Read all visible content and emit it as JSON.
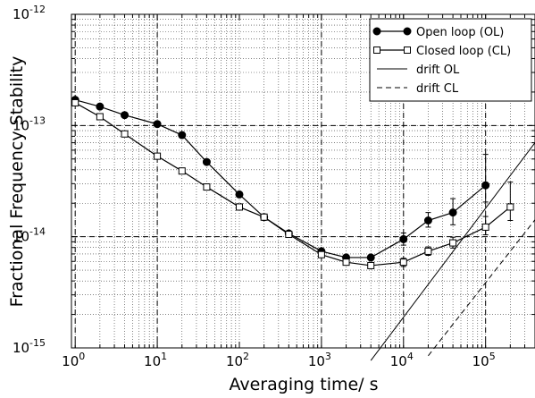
{
  "chart_data": {
    "type": "line",
    "xscale": "log",
    "yscale": "log",
    "xlim": [
      0.9,
      400000
    ],
    "ylim": [
      1e-15,
      1e-12
    ],
    "xlabel": "Averaging time/ s",
    "ylabel": "Fractional Frequency Stability",
    "grid": true,
    "legend_position": "top-right",
    "x_ticks": [
      {
        "value": 1,
        "base": "10",
        "exp": "0"
      },
      {
        "value": 10,
        "base": "10",
        "exp": "1"
      },
      {
        "value": 100,
        "base": "10",
        "exp": "2"
      },
      {
        "value": 1000,
        "base": "10",
        "exp": "3"
      },
      {
        "value": 10000,
        "base": "10",
        "exp": "4"
      },
      {
        "value": 100000,
        "base": "10",
        "exp": "5"
      }
    ],
    "y_ticks": [
      {
        "value": 1e-15,
        "base": "10",
        "exp": "-15"
      },
      {
        "value": 1e-14,
        "base": "10",
        "exp": "-14"
      },
      {
        "value": 1e-13,
        "base": "10",
        "exp": "-13"
      },
      {
        "value": 1e-12,
        "base": "10",
        "exp": "-12"
      }
    ],
    "reference_lines": [
      {
        "orient": "h",
        "value": 1e-13
      },
      {
        "orient": "h",
        "value": 1e-14
      },
      {
        "orient": "v",
        "value": 1
      },
      {
        "orient": "v",
        "value": 10
      },
      {
        "orient": "v",
        "value": 1000
      },
      {
        "orient": "v",
        "value": 10000
      },
      {
        "orient": "v",
        "value": 100000
      }
    ],
    "series": [
      {
        "name": "Open loop (OL)",
        "marker": "filled-circle",
        "color": "#000000",
        "x": [
          1,
          2,
          4,
          10,
          20,
          40,
          100,
          200,
          400,
          1000,
          2000,
          4000,
          10000,
          20000,
          40000,
          100000
        ],
        "y": [
          1.7e-13,
          1.48e-13,
          1.24e-13,
          1.03e-13,
          8.2e-14,
          4.7e-14,
          2.4e-14,
          1.5e-14,
          1.07e-14,
          7.4e-15,
          6.5e-15,
          6.5e-15,
          9.5e-15,
          1.4e-14,
          1.65e-14,
          2.9e-14
        ],
        "err_low": [
          null,
          null,
          null,
          null,
          null,
          null,
          null,
          null,
          null,
          null,
          null,
          null,
          8.4e-15,
          1.22e-14,
          1.28e-14,
          2.05e-14
        ],
        "err_high": [
          null,
          null,
          null,
          null,
          null,
          null,
          null,
          null,
          null,
          null,
          null,
          null,
          1.08e-14,
          1.65e-14,
          2.2e-14,
          5.5e-14
        ]
      },
      {
        "name": "Closed loop (CL)",
        "marker": "open-square",
        "color": "#000000",
        "x": [
          1,
          2,
          4,
          10,
          20,
          40,
          100,
          200,
          400,
          1000,
          2000,
          4000,
          10000,
          20000,
          40000,
          100000,
          200000
        ],
        "y": [
          1.6e-13,
          1.2e-13,
          8.4e-14,
          5.3e-14,
          3.9e-14,
          2.8e-14,
          1.85e-14,
          1.5e-14,
          1.05e-14,
          6.9e-15,
          5.9e-15,
          5.5e-15,
          5.9e-15,
          7.4e-15,
          8.8e-15,
          1.22e-14,
          1.85e-14
        ],
        "err_low": [
          null,
          null,
          null,
          null,
          null,
          null,
          null,
          null,
          null,
          null,
          null,
          null,
          5.4e-15,
          6.8e-15,
          7.9e-15,
          1.04e-14,
          1.4e-14
        ],
        "err_high": [
          null,
          null,
          null,
          null,
          null,
          null,
          null,
          null,
          null,
          null,
          null,
          null,
          6.4e-15,
          8.1e-15,
          9.9e-15,
          1.52e-14,
          3.1e-14
        ]
      },
      {
        "name": "drift OL",
        "marker": "none",
        "line_style": "solid",
        "color": "#000000",
        "x": [
          4000,
          400000
        ],
        "y": [
          7.7e-16,
          7e-14
        ]
      },
      {
        "name": "drift CL",
        "marker": "none",
        "line_style": "dashed",
        "color": "#000000",
        "x": [
          20000,
          400000
        ],
        "y": [
          8.5e-16,
          1.42e-14
        ]
      }
    ]
  }
}
